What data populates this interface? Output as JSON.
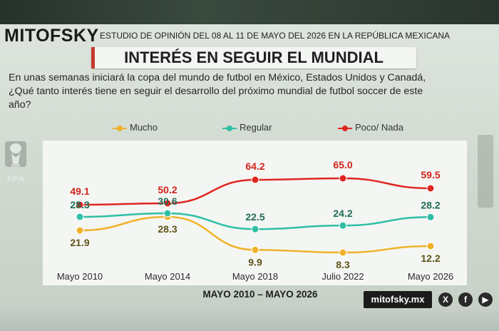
{
  "header": {
    "brand": "MITOFSKY",
    "study": "ESTUDIO DE OPINIÓN DEL 08 AL 11 DE MAYO DEL 2026 EN LA REPÚBLICA MEXICANA",
    "title": "INTERÉS EN SEGUIR EL MUNDIAL",
    "question": "En unas semanas iniciará la copa del mundo de futbol en México, Estados Unidos y Canadá, ¿Qué tanto interés tiene en seguir el desarrollo del próximo mundial de futbol soccer de este año?"
  },
  "logo": {
    "text": "FIFA",
    "icon": "world-cup-trophy-icon"
  },
  "footer": {
    "range": "MAYO 2010 – MAYO 2026",
    "site": "mitofsky.mx",
    "social": [
      {
        "icon": "x-icon",
        "glyph": "X"
      },
      {
        "icon": "facebook-icon",
        "glyph": "f"
      },
      {
        "icon": "youtube-icon",
        "glyph": "▶"
      }
    ]
  },
  "colors": {
    "mucho": "#f0b22a",
    "regular": "#2fbfa5",
    "poco": "#e0261f",
    "label_mucho": "#5e5418",
    "label_regular": "#1f6b55",
    "label_poco": "#d3231c"
  },
  "chart_data": {
    "type": "line",
    "title": "INTERÉS EN SEGUIR EL MUNDIAL",
    "xlabel": "",
    "ylabel": "",
    "categories": [
      "Mayo 2010",
      "Mayo 2014",
      "Mayo 2018",
      "Julio 2022",
      "Mayo 2026"
    ],
    "series": [
      {
        "name": "Mucho",
        "values": [
          21.9,
          28.3,
          9.9,
          8.3,
          12.2
        ],
        "labels": [
          "21.9",
          "28.3",
          "9.9",
          "8.3",
          "12.2"
        ],
        "color": "#f0b22a"
      },
      {
        "name": "Regular",
        "values": [
          28.3,
          30.6,
          22.5,
          24.2,
          28.2
        ],
        "labels": [
          "28.3",
          "30.6",
          "22.5",
          "24.2",
          "28.2"
        ],
        "color": "#2fbfa5"
      },
      {
        "name": "Poco/ Nada",
        "values": [
          49.1,
          50.2,
          64.2,
          65.0,
          59.5
        ],
        "labels": [
          "49.1",
          "50.2",
          "64.2",
          "65.0",
          "59.5"
        ],
        "color": "#e0261f"
      }
    ],
    "legend_position": "top",
    "grid": false
  }
}
